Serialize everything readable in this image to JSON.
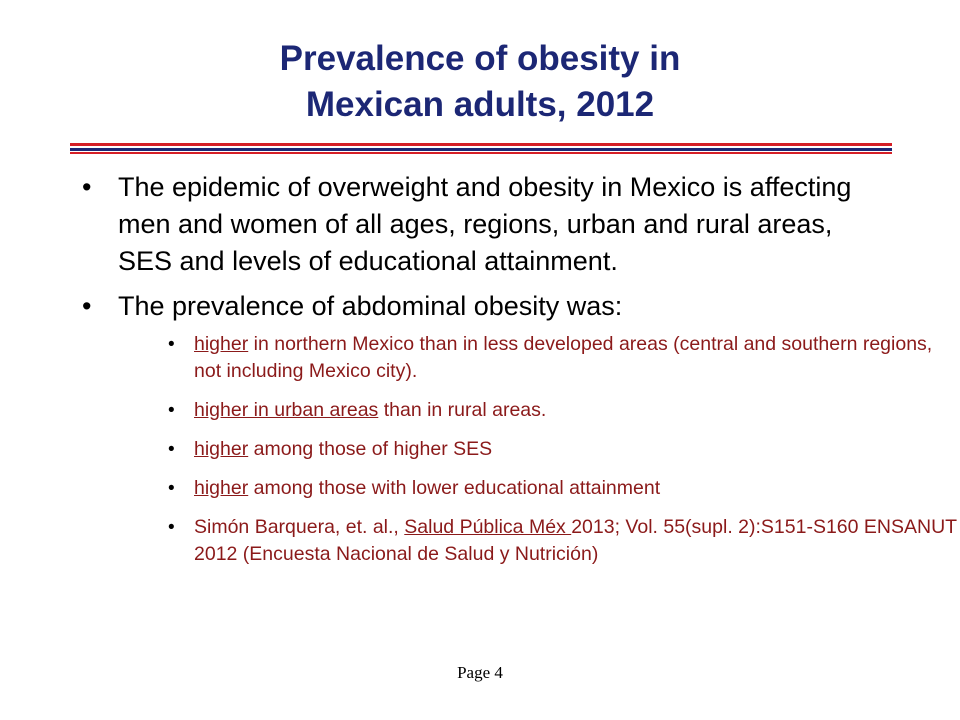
{
  "title": {
    "line1": "Prevalence of obesity in",
    "line2": "Mexican adults, 2012"
  },
  "bullets": [
    {
      "text": "The epidemic of overweight and obesity in Mexico is affecting men and women of all ages, regions, urban and rural areas, SES and levels of educational attainment."
    },
    {
      "text": "The prevalence of abdominal obesity was:"
    }
  ],
  "sub_bullets": [
    {
      "highlight": "higher",
      "rest": " in northern Mexico than in less developed areas (central and southern regions, not including Mexico city)."
    },
    {
      "highlight": "higher in urban areas",
      "rest": " than in rural areas."
    },
    {
      "highlight": "higher",
      "rest": " among those of higher SES"
    },
    {
      "highlight": "higher",
      "rest": " among those with lower educational attainment"
    },
    {
      "pre": "Simón Barquera, et. al., ",
      "journal": "Salud Pública Méx ",
      "post": "2013; Vol. 55(supl. 2):S151-S160 ENSANUT 2012 (Encuesta Nacional de Salud y Nutrición)"
    }
  ],
  "bullet_glyph": "•",
  "footer": "Page 4",
  "colors": {
    "title": "#1c2775",
    "rule_red": "#d51f26",
    "rule_blue": "#1c2775",
    "sub_text": "#8b1a1a"
  }
}
